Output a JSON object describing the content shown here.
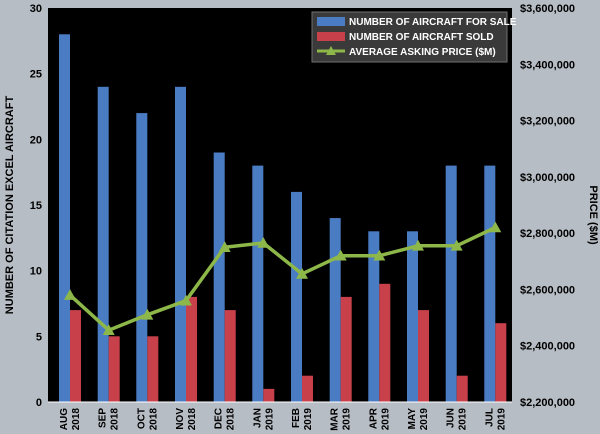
{
  "colors": {
    "plot_background": "#000000",
    "page_background": "#b7bdc4",
    "for_sale": "#4a7cc4",
    "sold": "#c8404a",
    "price": "#8db849",
    "gridline": "#ffffff"
  },
  "chart_data": {
    "type": "bar",
    "categories": [
      {
        "month": "AUG",
        "year": "2018"
      },
      {
        "month": "SEP",
        "year": "2018"
      },
      {
        "month": "OCT",
        "year": "2018"
      },
      {
        "month": "NOV",
        "year": "2018"
      },
      {
        "month": "DEC",
        "year": "2018"
      },
      {
        "month": "JAN",
        "year": "2019"
      },
      {
        "month": "FEB",
        "year": "2019"
      },
      {
        "month": "MAR",
        "year": "2019"
      },
      {
        "month": "APR",
        "year": "2019"
      },
      {
        "month": "MAY",
        "year": "2019"
      },
      {
        "month": "JUN",
        "year": "2019"
      },
      {
        "month": "JUL",
        "year": "2019"
      }
    ],
    "series": [
      {
        "name": "NUMBER OF AIRCRAFT FOR SALE",
        "type": "bar",
        "axis": "left",
        "values": [
          28,
          24,
          22,
          24,
          19,
          18,
          16,
          14,
          13,
          13,
          18,
          18
        ]
      },
      {
        "name": "NUMBER OF AIRCRAFT SOLD",
        "type": "bar",
        "axis": "left",
        "values": [
          7,
          5,
          5,
          8,
          7,
          1,
          2,
          8,
          9,
          7,
          2,
          6
        ]
      },
      {
        "name": "AVERAGE ASKING PRICE ($M)",
        "type": "line",
        "marker": "triangle",
        "axis": "right",
        "values": [
          2580000,
          2455000,
          2510000,
          2560000,
          2750000,
          2765000,
          2655000,
          2720000,
          2720000,
          2755000,
          2755000,
          2820000
        ]
      }
    ],
    "ylabel": "NUMBER OF CITATION EXCEL AIRCRAFT",
    "ylim": [
      0,
      30
    ],
    "yticks": [
      0,
      5,
      10,
      15,
      20,
      25,
      30
    ],
    "y2label": "PRICE ($M)",
    "y2lim": [
      2200000,
      3600000
    ],
    "y2ticks": [
      {
        "value": 2200000,
        "label": "$2,200,000"
      },
      {
        "value": 2400000,
        "label": "$2,400,000"
      },
      {
        "value": 2600000,
        "label": "$2,600,000"
      },
      {
        "value": 2800000,
        "label": "$2,800,000"
      },
      {
        "value": 3000000,
        "label": "$3,000,000"
      },
      {
        "value": 3200000,
        "label": "$3,200,000"
      },
      {
        "value": 3400000,
        "label": "$3,400,000"
      },
      {
        "value": 3600000,
        "label": "$3,600,000"
      }
    ],
    "grid": false,
    "legend_position": "top-right"
  }
}
